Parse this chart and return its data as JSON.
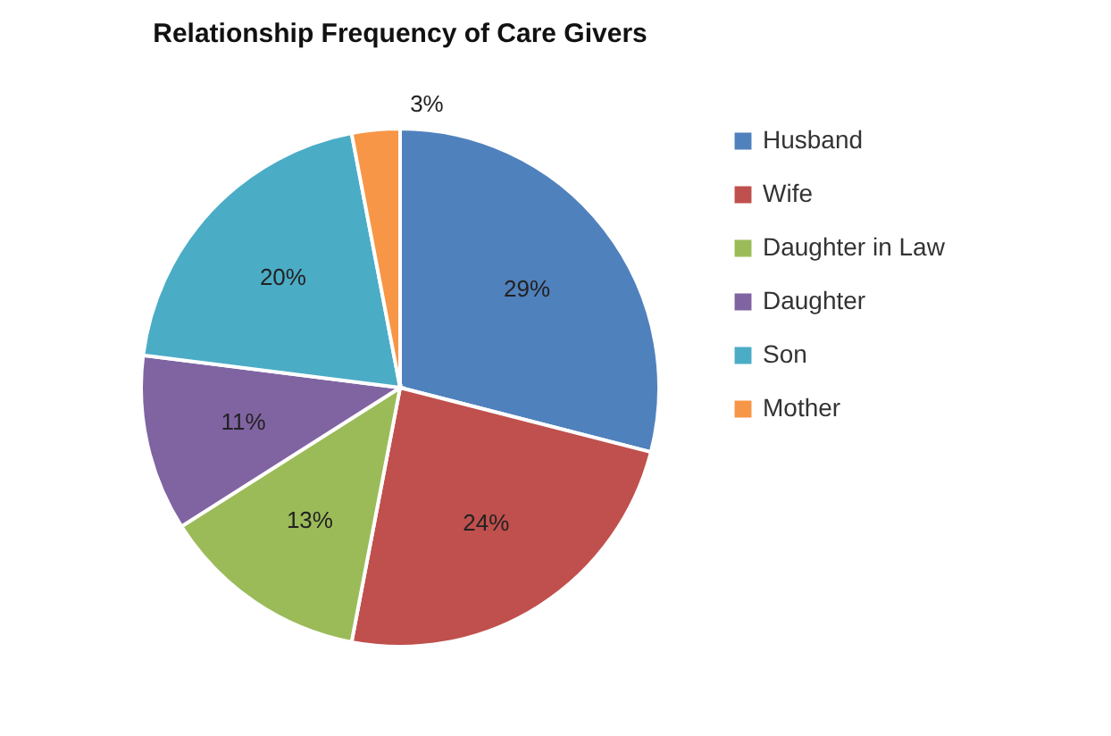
{
  "chart_data": {
    "type": "pie",
    "title": "Relationship Frequency of Care Givers",
    "categories": [
      "Husband",
      "Wife",
      "Daughter in Law",
      "Daughter",
      "Son",
      "Mother"
    ],
    "values": [
      29,
      24,
      13,
      11,
      20,
      3
    ],
    "value_labels": [
      "29%",
      "24%",
      "13%",
      "11%",
      "20%",
      "3%"
    ],
    "colors": [
      "#4f81bd",
      "#c0504d",
      "#9bbb59",
      "#8064a2",
      "#4bacc6",
      "#f79646"
    ],
    "legend": "right"
  }
}
